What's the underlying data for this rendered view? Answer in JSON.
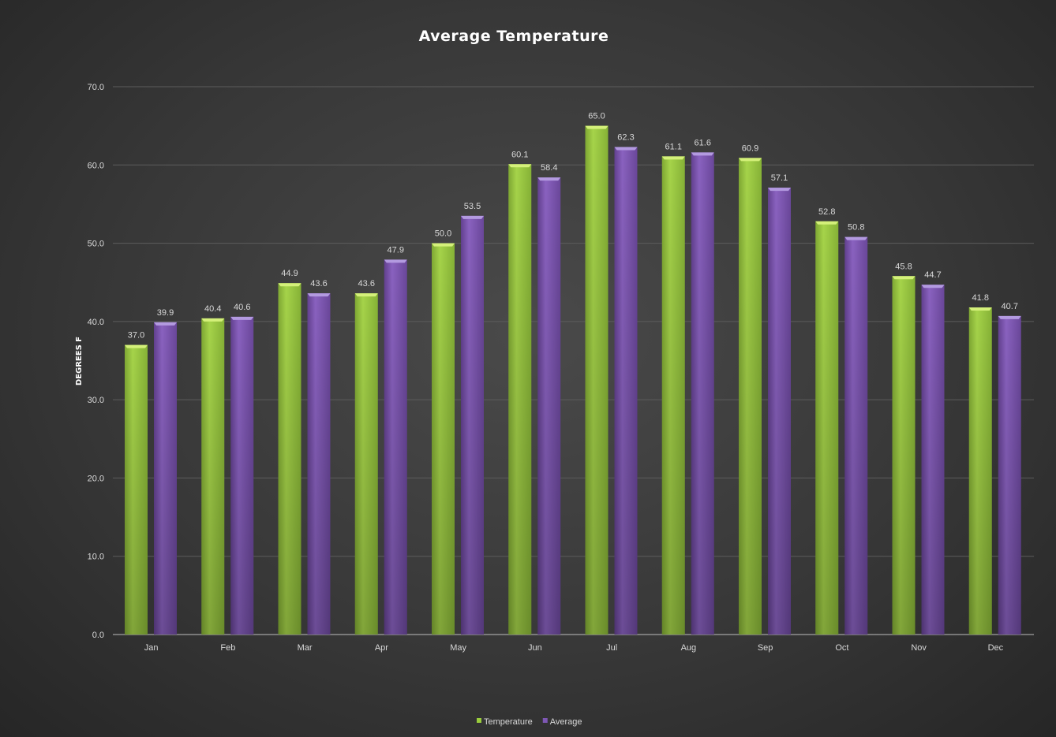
{
  "chart_data": {
    "type": "bar",
    "title": "Average Temperature",
    "xlabel": "",
    "ylabel": "DEGREES F",
    "ylim": [
      0,
      70
    ],
    "yticks": [
      "0.0",
      "10.0",
      "20.0",
      "30.0",
      "40.0",
      "50.0",
      "60.0",
      "70.0"
    ],
    "grid": true,
    "legend_position": "bottom",
    "categories": [
      "Jan",
      "Feb",
      "Mar",
      "Apr",
      "May",
      "Jun",
      "Jul",
      "Aug",
      "Sep",
      "Oct",
      "Nov",
      "Dec"
    ],
    "series": [
      {
        "name": "Temperature",
        "color": "#9acd3c",
        "values": [
          37.0,
          40.4,
          44.9,
          43.6,
          50.0,
          60.1,
          65.0,
          61.1,
          60.9,
          52.8,
          45.8,
          41.8
        ]
      },
      {
        "name": "Average",
        "color": "#7e57b4",
        "values": [
          39.9,
          40.6,
          43.6,
          47.9,
          53.5,
          58.4,
          62.3,
          61.6,
          57.1,
          50.8,
          44.7,
          40.7
        ]
      }
    ]
  }
}
